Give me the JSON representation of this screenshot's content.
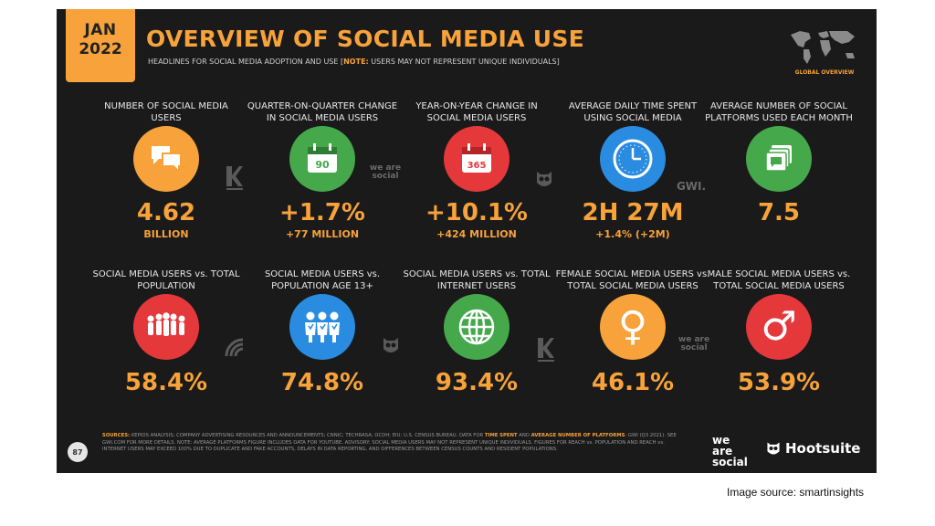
{
  "header": {
    "month": "JAN",
    "year": "2022",
    "title": "OVERVIEW OF SOCIAL MEDIA USE",
    "subtitle_main": "HEADLINES FOR SOCIAL MEDIA ADOPTION AND USE [",
    "subtitle_note": "NOTE:",
    "subtitle_rest": " USERS MAY NOT REPRESENT UNIQUE INDIVIDUALS]",
    "map_label": "GLOBAL OVERVIEW"
  },
  "row1": [
    {
      "label": "NUMBER OF SOCIAL MEDIA USERS",
      "value": "4.62",
      "sub": "BILLION",
      "icon": "chat-bubbles-icon",
      "color": "#f7a23a"
    },
    {
      "label": "QUARTER-ON-QUARTER CHANGE IN SOCIAL MEDIA USERS",
      "value": "+1.7%",
      "sub": "+77 MILLION",
      "icon_text": "90",
      "icon": "calendar-90-icon",
      "color": "#45a84b"
    },
    {
      "label": "YEAR-ON-YEAR CHANGE IN SOCIAL MEDIA USERS",
      "value": "+10.1%",
      "sub": "+424 MILLION",
      "icon_text": "365",
      "icon": "calendar-365-icon",
      "color": "#e5383b"
    },
    {
      "label": "AVERAGE DAILY TIME SPENT USING SOCIAL MEDIA",
      "value": "2H 27M",
      "sub": "+1.4% (+2M)",
      "icon": "clock-icon",
      "color": "#2a8ce0"
    },
    {
      "label": "AVERAGE NUMBER OF SOCIAL PLATFORMS USED EACH MONTH",
      "value": "7.5",
      "sub": "",
      "icon": "stacked-screens-icon",
      "color": "#45a84b"
    }
  ],
  "row2": [
    {
      "label": "SOCIAL MEDIA USERS vs. TOTAL POPULATION",
      "value": "58.4%",
      "icon": "crowd-icon",
      "color": "#e5383b"
    },
    {
      "label": "SOCIAL MEDIA USERS vs. POPULATION AGE 13+",
      "value": "74.8%",
      "icon": "adults-icon",
      "color": "#2a8ce0"
    },
    {
      "label": "SOCIAL MEDIA USERS vs. TOTAL INTERNET USERS",
      "value": "93.4%",
      "icon": "globe-icon",
      "color": "#45a84b"
    },
    {
      "label": "FEMALE SOCIAL MEDIA USERS vs. TOTAL SOCIAL MEDIA USERS",
      "value": "46.1%",
      "icon_text": "♀",
      "icon": "female-symbol-icon",
      "color": "#f7a23a"
    },
    {
      "label": "MALE SOCIAL MEDIA USERS vs. TOTAL SOCIAL MEDIA USERS",
      "value": "53.9%",
      "icon_text": "♂",
      "icon": "male-symbol-icon",
      "color": "#e5383b"
    }
  ],
  "source_logos": {
    "we_are_social": "we are social",
    "gwi": "GWI."
  },
  "footer": {
    "page_number": "87",
    "sources_label": "SOURCES:",
    "sources_text": "KEPIOS ANALYSIS; COMPANY ADVERTISING RESOURCES AND ANNOUNCEMENTS; CNNIC; TECHRASA; OCDH; EIU; U.S. CENSUS BUREAU. DATA FOR ",
    "time_spent": "TIME SPENT",
    "and": " AND ",
    "avg_platforms": "AVERAGE NUMBER OF PLATFORMS",
    "sources_rest": ": GWI (Q3 2021). SEE GWI.COM FOR MORE DETAILS. NOTE: AVERAGE PLATFORMS FIGURE INCLUDES DATA FOR YOUTUBE. ADVISORY: SOCIAL MEDIA USERS MAY NOT REPRESENT UNIQUE INDIVIDUALS. FIGURES FOR REACH vs. POPULATION AND REACH vs. INTERNET USERS MAY EXCEED 100% DUE TO DUPLICATE AND FAKE ACCOUNTS, DELAYS IN DATA REPORTING, AND DIFFERENCES BETWEEN CENSUS COUNTS AND RESIDENT POPULATIONS.",
    "we": "we",
    "are": "are",
    "social": "social",
    "hootsuite": "Hootsuite"
  },
  "caption": "Image source: smartinsights"
}
